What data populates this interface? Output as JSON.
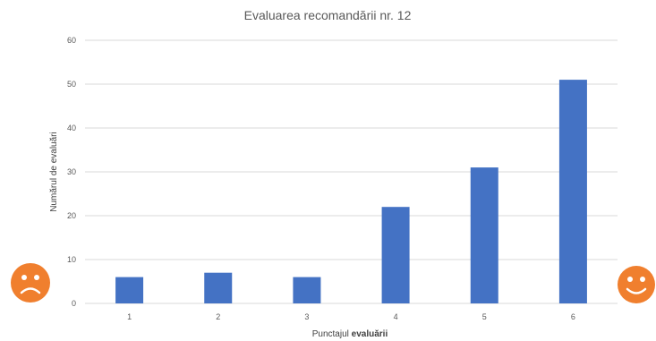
{
  "chart_data": {
    "type": "bar",
    "title": "Evaluarea recomandării nr. 12",
    "xlabel_prefix": "Punctajul ",
    "xlabel_bold": "evaluării",
    "ylabel": "Numărul de evaluări",
    "categories": [
      "1",
      "2",
      "3",
      "4",
      "5",
      "6"
    ],
    "values": [
      6,
      7,
      6,
      22,
      31,
      51
    ],
    "ylim": [
      0,
      60
    ],
    "yticks": [
      0,
      10,
      20,
      30,
      40,
      50,
      60
    ],
    "grid": true,
    "legend": "none",
    "bar_color": "#4472c4"
  },
  "decorations": {
    "left_icon": "sad-face-icon",
    "right_icon": "happy-face-icon",
    "icon_color": "#f07f2e"
  }
}
